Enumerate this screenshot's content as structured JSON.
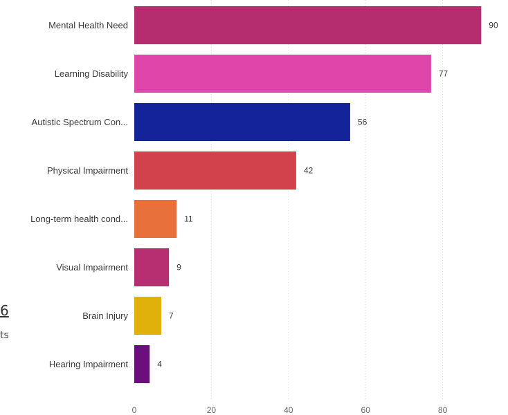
{
  "chart_data": {
    "type": "bar",
    "orientation": "horizontal",
    "categories": [
      "Mental Health Need",
      "Learning Disability",
      "Autistic Spectrum Con...",
      "Physical Impairment",
      "Long-term health cond...",
      "Visual Impairment",
      "Brain Injury",
      "Hearing Impairment"
    ],
    "values": [
      90,
      77,
      56,
      42,
      11,
      9,
      7,
      4
    ],
    "colors": [
      "#b52d6e",
      "#e045aa",
      "#15239a",
      "#d2424d",
      "#e8703a",
      "#b72f70",
      "#e0b10a",
      "#6b0f7d"
    ],
    "x_ticks": [
      "0",
      "20",
      "40",
      "60",
      "80"
    ],
    "xlim": [
      0,
      90
    ],
    "grid": true,
    "title": "",
    "xlabel": "",
    "ylabel": ""
  },
  "fragments": {
    "number": "6",
    "text": "ts"
  }
}
